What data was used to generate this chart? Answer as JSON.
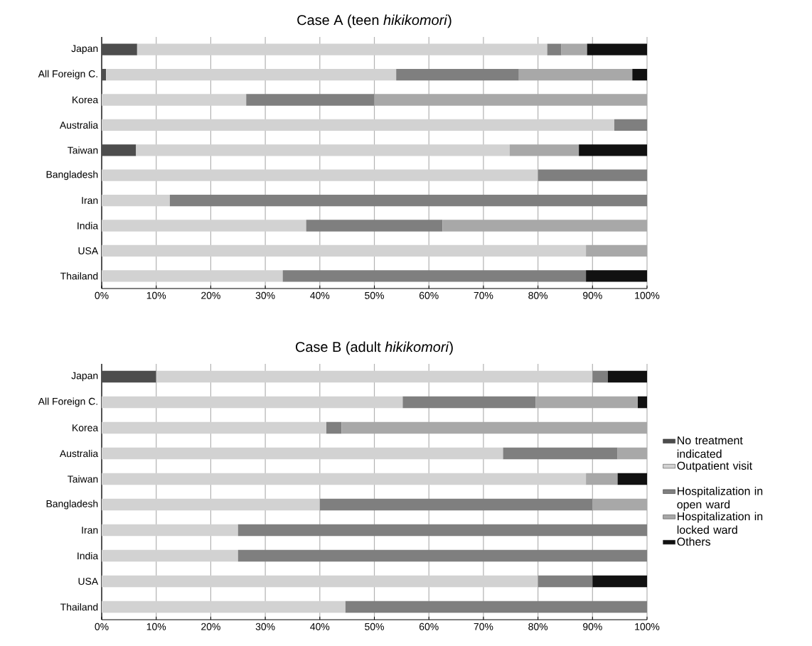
{
  "chart_data": [
    {
      "type": "bar",
      "orientation": "horizontal",
      "stacked": true,
      "title": "Case A (teen *hikikomori*)",
      "categories": [
        "Japan",
        "All Foreign C.",
        "Korea",
        "Australia",
        "Taiwan",
        "Bangladesh",
        "Iran",
        "India",
        "USA",
        "Thailand"
      ],
      "series": [
        {
          "color": "#4d4d4d",
          "values": [
            6.5,
            0.8,
            null,
            null,
            6.3,
            null,
            null,
            null,
            null,
            null
          ]
        },
        {
          "color": "#d2d2d2",
          "values": [
            75.2,
            53.2,
            26.5,
            94,
            68.5,
            80,
            12.5,
            37.5,
            88.8,
            33.2
          ]
        },
        {
          "color": "#7f7f7f",
          "values": [
            2.6,
            22.5,
            23.5,
            6,
            null,
            20,
            87.5,
            25,
            null,
            55.6
          ]
        },
        {
          "color": "#a8a8a8",
          "values": [
            4.7,
            20.8,
            50,
            null,
            12.7,
            null,
            null,
            37.5,
            11.2,
            null
          ]
        },
        {
          "color": "#111111",
          "values": [
            11,
            2.7,
            null,
            null,
            12.5,
            null,
            null,
            null,
            null,
            11.2
          ]
        }
      ],
      "xlim": [
        0,
        100
      ],
      "xticks": [
        {
          "value": 0,
          "label": "0%"
        },
        {
          "value": 10,
          "label": "10%"
        },
        {
          "value": 20,
          "label": "20%"
        },
        {
          "value": 30,
          "label": "30%"
        },
        {
          "value": 40,
          "label": "40%"
        },
        {
          "value": 50,
          "label": "50%"
        },
        {
          "value": 60,
          "label": "60%"
        },
        {
          "value": 70,
          "label": "70%"
        },
        {
          "value": 80,
          "label": "80%"
        },
        {
          "value": 90,
          "label": "90%"
        },
        {
          "value": 100,
          "label": "100%"
        }
      ],
      "grid": "x",
      "legend": false
    },
    {
      "type": "bar",
      "orientation": "horizontal",
      "stacked": true,
      "title": "Case B (adult *hikikomori*)",
      "categories": [
        "Japan",
        "All Foreign C.",
        "Korea",
        "Australia",
        "Taiwan",
        "Bangladesh",
        "Iran",
        "India",
        "USA",
        "Thailand"
      ],
      "series": [
        {
          "name": "No treatment indicated",
          "color": "#4d4d4d",
          "values": [
            10,
            null,
            null,
            null,
            null,
            null,
            null,
            null,
            null,
            null
          ]
        },
        {
          "name": "Outpatient visit",
          "color": "#d2d2d2",
          "values": [
            80,
            55.2,
            41.2,
            73.6,
            88.8,
            40,
            25,
            25,
            80,
            44.7
          ]
        },
        {
          "name": "Hospitalization in open ward",
          "color": "#7f7f7f",
          "values": [
            2.8,
            24.4,
            2.8,
            21,
            null,
            50,
            75,
            75,
            10,
            55.3
          ]
        },
        {
          "name": "Hospitalization in locked ward",
          "color": "#a8a8a8",
          "values": [
            null,
            18.7,
            56,
            5.4,
            5.8,
            10,
            null,
            null,
            null,
            null
          ]
        },
        {
          "name": "Others",
          "color": "#111111",
          "values": [
            7.2,
            1.7,
            null,
            null,
            5.4,
            null,
            null,
            null,
            10,
            null
          ]
        }
      ],
      "xlim": [
        0,
        100
      ],
      "xticks": [
        {
          "value": 0,
          "label": "0%"
        },
        {
          "value": 10,
          "label": "10%"
        },
        {
          "value": 20,
          "label": "20%"
        },
        {
          "value": 30,
          "label": "30%"
        },
        {
          "value": 40,
          "label": "40%"
        },
        {
          "value": 50,
          "label": "50%"
        },
        {
          "value": 60,
          "label": "60%"
        },
        {
          "value": 70,
          "label": "70%"
        },
        {
          "value": 80,
          "label": "80%"
        },
        {
          "value": 90,
          "label": "90%"
        },
        {
          "value": 100,
          "label": "100%"
        }
      ],
      "grid": "x",
      "legend": "right"
    }
  ]
}
